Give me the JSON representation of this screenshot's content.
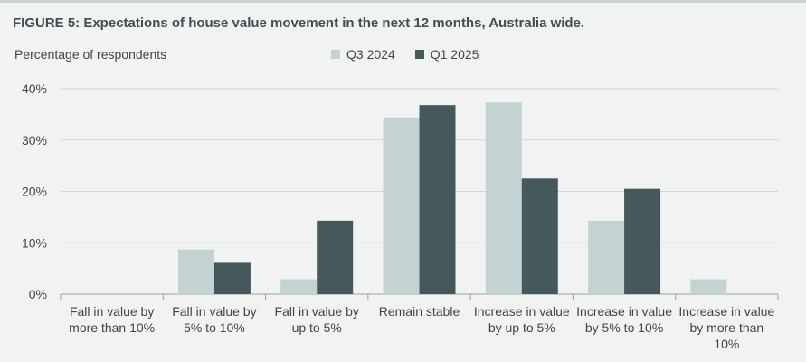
{
  "figure_title": "FIGURE 5: Expectations of house value movement in the next 12 months, Australia wide.",
  "colors": {
    "Q3 2024": "#c3d2d3",
    "Q1 2025": "#45595d",
    "grid": "#d3d6d6",
    "axis": "#9aa0a0"
  },
  "chart_data": {
    "type": "bar",
    "title": "FIGURE 5: Expectations of house value movement in the next 12 months, Australia wide.",
    "ylabel": "Percentage of respondents",
    "xlabel": "",
    "ylim": [
      0,
      40
    ],
    "yticks": [
      "0%",
      "10%",
      "20%",
      "30%",
      "40%"
    ],
    "ytick_values": [
      0,
      10,
      20,
      30,
      40
    ],
    "grid": true,
    "legend_position": "top",
    "categories": [
      [
        "Fall in value by",
        "more than 10%"
      ],
      [
        "Fall in value by",
        "5% to 10%"
      ],
      [
        "Fall in value by",
        "up to 5%"
      ],
      [
        "Remain stable"
      ],
      [
        "Increase in value",
        "by up to 5%"
      ],
      [
        "Increase in value",
        "by 5% to 10%"
      ],
      [
        "Increase in value",
        "by more than",
        "10%"
      ]
    ],
    "series": [
      {
        "name": "Q3 2024",
        "values": [
          0,
          8.7,
          2.9,
          34.4,
          37.3,
          14.3,
          2.9
        ]
      },
      {
        "name": "Q1 2025",
        "values": [
          0,
          6.1,
          14.3,
          36.8,
          22.5,
          20.5,
          0
        ]
      }
    ]
  }
}
